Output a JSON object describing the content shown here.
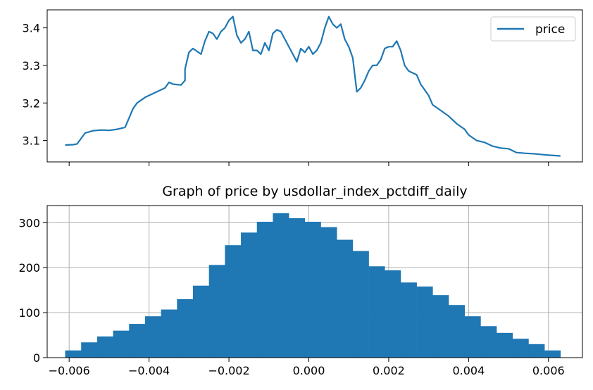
{
  "chart_data": [
    {
      "type": "line",
      "title": "",
      "xlabel": "",
      "ylabel": "",
      "xlim": [
        -0.00655,
        0.00685
      ],
      "ylim": [
        3.043,
        3.448
      ],
      "yticks": [
        3.1,
        3.2,
        3.3,
        3.4
      ],
      "ytick_labels": [
        "3.1",
        "3.2",
        "3.3",
        "3.4"
      ],
      "xticks": [
        -0.006,
        -0.004,
        -0.002,
        0.0,
        0.002,
        0.004,
        0.006
      ],
      "show_xtick_labels": false,
      "grid": false,
      "legend": {
        "position": "upper-right",
        "entries": [
          "price"
        ]
      },
      "series": [
        {
          "name": "price",
          "color": "#1f77b4",
          "x": [
            -0.0061,
            -0.0059,
            -0.0058,
            -0.0056,
            -0.0054,
            -0.0052,
            -0.005,
            -0.0048,
            -0.0046,
            -0.0045,
            -0.0044,
            -0.0043,
            -0.0041,
            -0.0039,
            -0.0038,
            -0.0036,
            -0.0035,
            -0.0034,
            -0.0032,
            -0.0031,
            -0.0031,
            -0.003,
            -0.0029,
            -0.0027,
            -0.0026,
            -0.0025,
            -0.0024,
            -0.0023,
            -0.0022,
            -0.0021,
            -0.002,
            -0.0019,
            -0.0018,
            -0.0017,
            -0.0016,
            -0.0015,
            -0.0014,
            -0.0013,
            -0.0012,
            -0.0011,
            -0.001,
            -0.0009,
            -0.0008,
            -0.0007,
            -0.0006,
            -0.0005,
            -0.0004,
            -0.0003,
            -0.0002,
            -0.0001,
            0.0,
            0.0001,
            0.0002,
            0.0003,
            0.0004,
            0.0005,
            0.0006,
            0.0007,
            0.0008,
            0.0009,
            0.001,
            0.0011,
            0.0012,
            0.0013,
            0.0014,
            0.0015,
            0.0016,
            0.0017,
            0.0018,
            0.0019,
            0.002,
            0.0021,
            0.0022,
            0.0023,
            0.0024,
            0.0025,
            0.0027,
            0.0028,
            0.003,
            0.0031,
            0.0033,
            0.0035,
            0.0037,
            0.0039,
            0.004,
            0.0042,
            0.0044,
            0.0046,
            0.0048,
            0.005,
            0.0052,
            0.0054,
            0.0056,
            0.0058,
            0.006,
            0.0063
          ],
          "y": [
            3.088,
            3.089,
            3.091,
            3.12,
            3.126,
            3.128,
            3.127,
            3.13,
            3.135,
            3.16,
            3.185,
            3.2,
            3.215,
            3.225,
            3.23,
            3.24,
            3.255,
            3.25,
            3.248,
            3.26,
            3.29,
            3.335,
            3.345,
            3.33,
            3.365,
            3.39,
            3.385,
            3.37,
            3.39,
            3.4,
            3.42,
            3.43,
            3.38,
            3.36,
            3.37,
            3.39,
            3.34,
            3.34,
            3.33,
            3.36,
            3.34,
            3.385,
            3.395,
            3.39,
            3.37,
            3.35,
            3.33,
            3.31,
            3.345,
            3.335,
            3.35,
            3.33,
            3.34,
            3.36,
            3.4,
            3.43,
            3.41,
            3.4,
            3.41,
            3.37,
            3.35,
            3.32,
            3.23,
            3.24,
            3.26,
            3.285,
            3.3,
            3.3,
            3.315,
            3.345,
            3.35,
            3.35,
            3.365,
            3.34,
            3.3,
            3.285,
            3.275,
            3.25,
            3.22,
            3.195,
            3.18,
            3.165,
            3.145,
            3.13,
            3.115,
            3.1,
            3.095,
            3.085,
            3.08,
            3.078,
            3.068,
            3.066,
            3.065,
            3.063,
            3.061,
            3.059
          ]
        }
      ]
    },
    {
      "type": "bar",
      "title": "Graph of price by usdollar_index_pctdiff_daily",
      "xlabel": "",
      "ylabel": "",
      "xlim": [
        -0.00655,
        0.00685
      ],
      "ylim": [
        0,
        338
      ],
      "xticks": [
        -0.006,
        -0.004,
        -0.002,
        0.0,
        0.002,
        0.004,
        0.006
      ],
      "xtick_labels": [
        "−0.006",
        "−0.004",
        "−0.002",
        "0.000",
        "0.002",
        "0.004",
        "0.006"
      ],
      "yticks": [
        0,
        100,
        200,
        300
      ],
      "ytick_labels": [
        "0",
        "100",
        "200",
        "300"
      ],
      "grid": true,
      "bin_edges": [
        -0.0061,
        -0.0057,
        -0.0053,
        -0.0049,
        -0.0045,
        -0.0041,
        -0.0037,
        -0.0033,
        -0.0029,
        -0.0025,
        -0.0021,
        -0.0017,
        -0.0013,
        -0.0009,
        -0.0005,
        -0.0001,
        0.0003,
        0.0007,
        0.0011,
        0.0015,
        0.0019,
        0.0023,
        0.0027,
        0.0031,
        0.0035,
        0.0039,
        0.0043,
        0.0047,
        0.0051,
        0.0055,
        0.0059,
        0.0063
      ],
      "values": [
        16,
        34,
        47,
        60,
        75,
        92,
        107,
        130,
        160,
        206,
        250,
        278,
        302,
        321,
        310,
        302,
        290,
        262,
        237,
        203,
        194,
        167,
        158,
        139,
        117,
        92,
        70,
        55,
        42,
        30,
        16
      ],
      "color": "#1f77b4"
    }
  ]
}
